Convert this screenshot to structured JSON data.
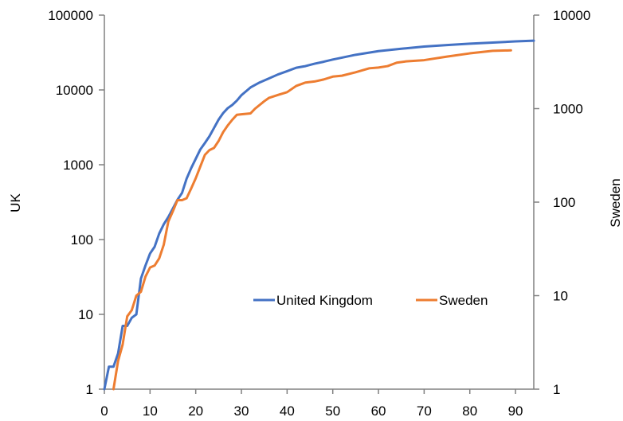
{
  "chart_data": {
    "type": "line",
    "title": "",
    "xlabel": "",
    "y_left_label": "UK",
    "y_right_label": "Sweden",
    "xlim": [
      0,
      94
    ],
    "x_ticks": [
      0,
      10,
      20,
      30,
      40,
      50,
      60,
      70,
      80,
      90
    ],
    "x_tick_labels": [
      "0",
      "10",
      "20",
      "30",
      "40",
      "50",
      "60",
      "70",
      "80",
      "90"
    ],
    "y_left_scale": "log",
    "y_left_lim": [
      1,
      100000
    ],
    "y_left_ticks": [
      1,
      10,
      100,
      1000,
      10000,
      100000
    ],
    "y_left_tick_labels": [
      "1",
      "10",
      "100",
      "1000",
      "10000",
      "100000"
    ],
    "y_right_scale": "log",
    "y_right_lim": [
      1,
      10000
    ],
    "y_right_ticks": [
      1,
      10,
      100,
      1000,
      10000
    ],
    "y_right_tick_labels": [
      "1",
      "10",
      "100",
      "1000",
      "10000"
    ],
    "grid": false,
    "legend_position": "lower-right inside plot",
    "series": [
      {
        "name": "United Kingdom",
        "axis": "left",
        "color": "#4472C4",
        "x": [
          0,
          1,
          2,
          3,
          4,
          5,
          6,
          7,
          8,
          9,
          10,
          11,
          12,
          13,
          14,
          15,
          16,
          17,
          18,
          19,
          20,
          21,
          22,
          23,
          24,
          25,
          26,
          27,
          28,
          29,
          30,
          32,
          34,
          36,
          38,
          40,
          42,
          44,
          46,
          48,
          50,
          52,
          55,
          60,
          65,
          70,
          75,
          80,
          85,
          90,
          94
        ],
        "y": [
          1,
          2,
          2,
          3,
          7,
          7,
          9,
          10,
          30,
          45,
          65,
          80,
          120,
          160,
          200,
          260,
          340,
          420,
          650,
          900,
          1200,
          1600,
          1950,
          2400,
          3100,
          4000,
          4900,
          5700,
          6300,
          7200,
          8500,
          10800,
          12600,
          14200,
          16100,
          17800,
          19800,
          20800,
          22400,
          23800,
          25500,
          27000,
          29500,
          33000,
          35500,
          38000,
          39800,
          41500,
          43000,
          44500,
          45500
        ]
      },
      {
        "name": "Sweden",
        "axis": "right",
        "color": "#ED7D31",
        "x": [
          2,
          3,
          4,
          5,
          6,
          7,
          8,
          9,
          10,
          11,
          12,
          13,
          14,
          15,
          16,
          17,
          18,
          19,
          20,
          21,
          22,
          23,
          24,
          25,
          26,
          27,
          28,
          29,
          30,
          32,
          33,
          35,
          36,
          38,
          40,
          42,
          44,
          46,
          48,
          50,
          52,
          55,
          58,
          60,
          62,
          64,
          66,
          70,
          75,
          80,
          85,
          89
        ],
        "y": [
          1,
          2,
          3,
          6,
          7,
          10,
          11,
          16,
          20,
          21,
          25,
          35,
          62,
          80,
          105,
          105,
          110,
          140,
          180,
          240,
          320,
          360,
          380,
          450,
          560,
          660,
          760,
          860,
          870,
          890,
          1000,
          1200,
          1300,
          1400,
          1500,
          1750,
          1900,
          1950,
          2050,
          2200,
          2250,
          2450,
          2700,
          2750,
          2850,
          3100,
          3200,
          3300,
          3600,
          3900,
          4150,
          4200
        ]
      }
    ]
  }
}
